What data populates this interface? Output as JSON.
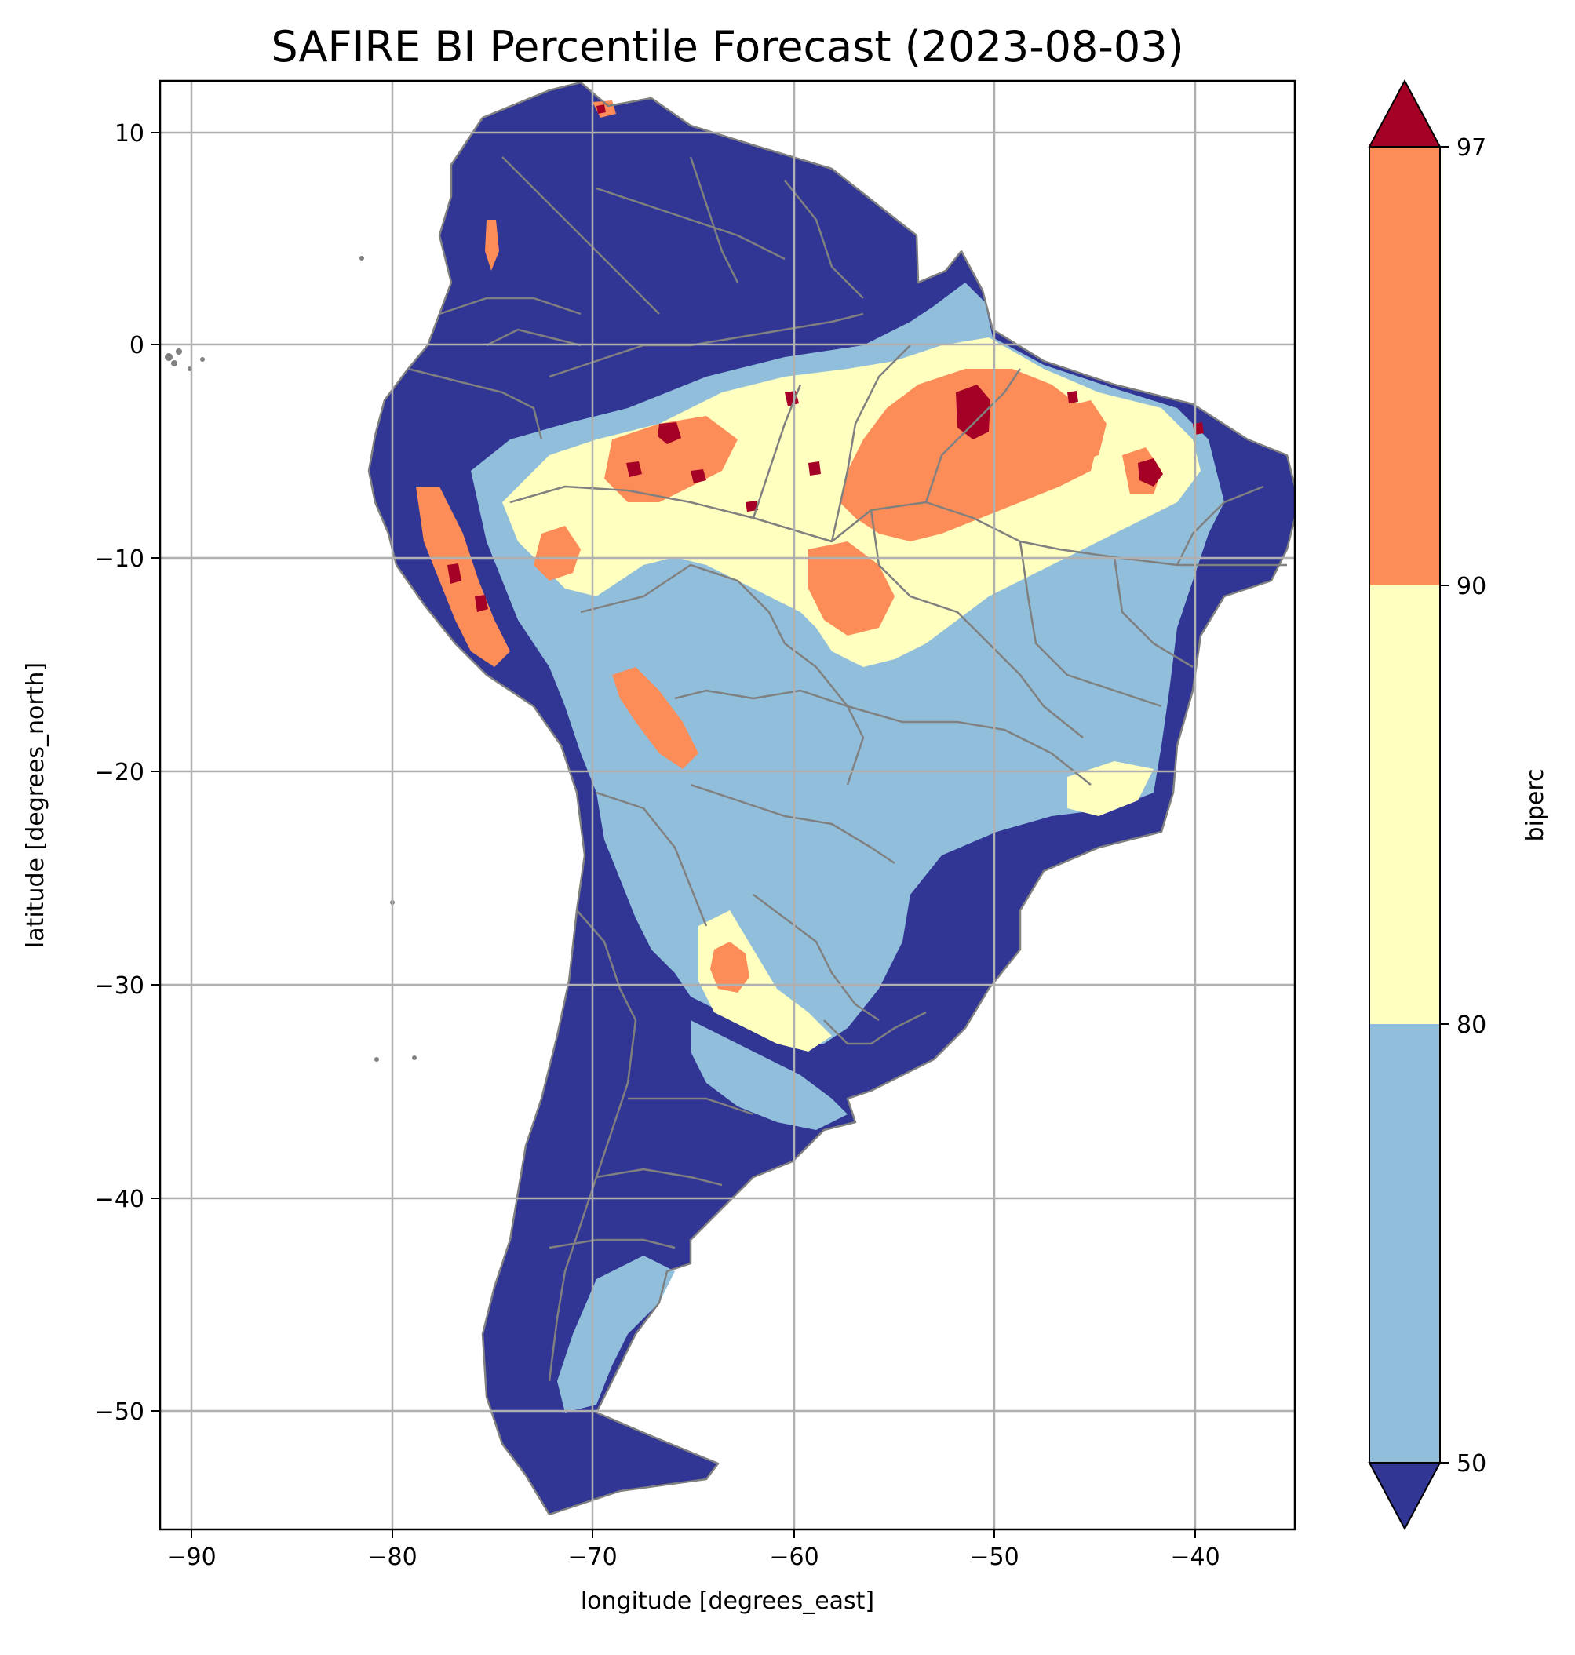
{
  "title": "SAFIRE BI Percentile Forecast (2023-08-03)",
  "xlabel": "longitude [degrees_east]",
  "ylabel": "latitude [degrees_north]",
  "colorbar_label": "biperc",
  "x_ticks": [
    "−90",
    "−80",
    "−70",
    "−60",
    "−50",
    "−40"
  ],
  "y_ticks": [
    "10",
    "0",
    "−10",
    "−20",
    "−30",
    "−40",
    "−50"
  ],
  "colorbar_ticks": [
    "50",
    "80",
    "90",
    "97"
  ],
  "chart_data": {
    "type": "heatmap",
    "title": "SAFIRE BI Percentile Forecast (2023-08-03)",
    "xlabel": "longitude [degrees_east]",
    "ylabel": "latitude [degrees_north]",
    "xlim": [
      -91.6,
      -35.0
    ],
    "ylim": [
      -55.9,
      12.4
    ],
    "x_ticks": [
      -90,
      -80,
      -70,
      -60,
      -50,
      -40
    ],
    "y_ticks": [
      10,
      0,
      -10,
      -20,
      -30,
      -40,
      -50
    ],
    "grid": true,
    "colorbar": {
      "label": "biperc",
      "levels": [
        50,
        80,
        90,
        97
      ],
      "extend": "both",
      "colors": {
        "below_50": "#313695",
        "50_80": "#91bfdb",
        "80_90": "#ffffbf",
        "90_97": "#fc8d59",
        "above_97": "#a50026"
      }
    },
    "border_color": "#808080"
  }
}
